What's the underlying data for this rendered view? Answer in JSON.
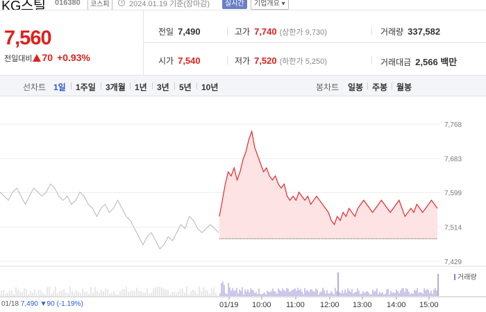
{
  "header": {
    "stock_name": "KG스틸",
    "stock_code": "016380",
    "market": "코스피",
    "date_note": "2024.01.19  기준(장마감)",
    "realtime_label": "실시간",
    "company_info_label": "기업개요 ▾"
  },
  "price": {
    "current": "7,560",
    "change_label": "전일대비",
    "change_abs": "70",
    "change_pct": "+0.93%",
    "direction": "up"
  },
  "info": {
    "prev_close": {
      "label": "전일",
      "value": "7,490"
    },
    "open": {
      "label": "시가",
      "value": "7,540"
    },
    "high": {
      "label": "고가",
      "value": "7,740",
      "sub": "(상한가 9,730)"
    },
    "low": {
      "label": "저가",
      "value": "7,520",
      "sub": "(하한가 5,250)"
    },
    "volume": {
      "label": "거래량",
      "value": "337,582"
    },
    "amount": {
      "label": "거래대금",
      "value": "2,566 백만"
    }
  },
  "tabs": {
    "line_label": "선차트",
    "periods": [
      "1일",
      "1주일",
      "3개월",
      "1년",
      "3년",
      "5년",
      "10년"
    ],
    "active_period": "1일",
    "candle_label": "봉차트",
    "candles": [
      "일봉",
      "주봉",
      "월봉"
    ]
  },
  "chart_data": {
    "type": "line",
    "title": "",
    "y_ticks": [
      "7,768",
      "7,683",
      "7,599",
      "7,514",
      "7,429"
    ],
    "ylim": [
      7429,
      7768
    ],
    "x_ticks": [
      "01/19",
      "10:00",
      "11:00",
      "12:00",
      "13:00",
      "14:00",
      "15:00"
    ],
    "prev_day_label": "01/18",
    "series": [
      {
        "name": "01/18",
        "color": "#b5b5b5",
        "note": "previous day (gray)",
        "values": [
          7600,
          7590,
          7580,
          7600,
          7610,
          7590,
          7570,
          7590,
          7610,
          7600,
          7590,
          7600,
          7620,
          7610,
          7590,
          7580,
          7590,
          7570,
          7580,
          7600,
          7590,
          7570,
          7560,
          7540,
          7560,
          7570,
          7550,
          7560,
          7580,
          7560,
          7540,
          7530,
          7510,
          7490,
          7470,
          7490,
          7500,
          7480,
          7460,
          7470,
          7490,
          7480,
          7500,
          7520,
          7510,
          7540,
          7530,
          7510,
          7500,
          7510,
          7520,
          7510,
          7500
        ]
      },
      {
        "name": "01/19",
        "color": "#e8262a",
        "fill": "#fde3e3",
        "values": [
          7540,
          7580,
          7620,
          7650,
          7640,
          7660,
          7630,
          7650,
          7680,
          7700,
          7730,
          7750,
          7710,
          7690,
          7670,
          7650,
          7660,
          7640,
          7630,
          7640,
          7620,
          7610,
          7620,
          7590,
          7580,
          7590,
          7580,
          7600,
          7590,
          7580,
          7590,
          7570,
          7580,
          7590,
          7580,
          7570,
          7560,
          7550,
          7530,
          7520,
          7540,
          7530,
          7550,
          7540,
          7560,
          7550,
          7540,
          7560,
          7570,
          7580,
          7570,
          7560,
          7550,
          7560,
          7570,
          7580,
          7570,
          7560,
          7550,
          7560,
          7570,
          7580,
          7560,
          7540,
          7550,
          7560,
          7550,
          7570,
          7560,
          7550,
          7560,
          7570,
          7580,
          7570,
          7560
        ]
      }
    ],
    "baseline": 7490
  },
  "prev_summary": {
    "date": "01/18",
    "close": "7,490",
    "change": "▼90",
    "pct": "(-1.19%)"
  },
  "volume_legend": "거래량"
}
